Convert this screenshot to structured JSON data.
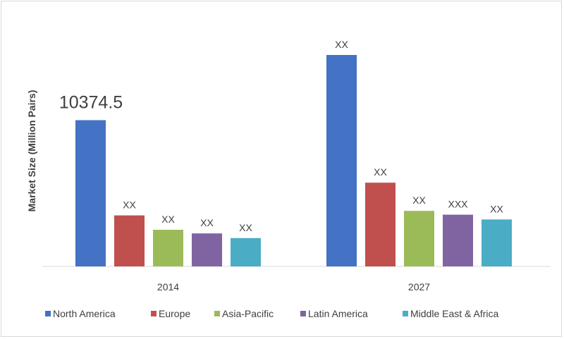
{
  "chart_data": {
    "type": "bar",
    "title": "",
    "xlabel": "",
    "ylabel": "Market Size (Million Pairs)",
    "categories": [
      "2014",
      "2027"
    ],
    "ylim": [
      0,
      14500
    ],
    "grid": false,
    "legend_position": "bottom",
    "series": [
      {
        "name": "North America",
        "color": "#4472c4",
        "values": [
          10374.5,
          15000
        ],
        "labels": [
          "10374.5",
          "XX"
        ]
      },
      {
        "name": "Europe",
        "color": "#c0504d",
        "values": [
          3620,
          5940
        ],
        "labels": [
          "XX",
          "XX"
        ]
      },
      {
        "name": "Asia-Pacific",
        "color": "#9bbb59",
        "values": [
          2600,
          3940
        ],
        "labels": [
          "XX",
          "XX"
        ]
      },
      {
        "name": "Latin America",
        "color": "#8064a2",
        "values": [
          2340,
          3670
        ],
        "labels": [
          "XX",
          "XXX"
        ]
      },
      {
        "name": "Middle East & Africa",
        "color": "#4bacc6",
        "values": [
          2010,
          3330
        ],
        "labels": [
          "XX",
          "XX"
        ]
      }
    ]
  }
}
